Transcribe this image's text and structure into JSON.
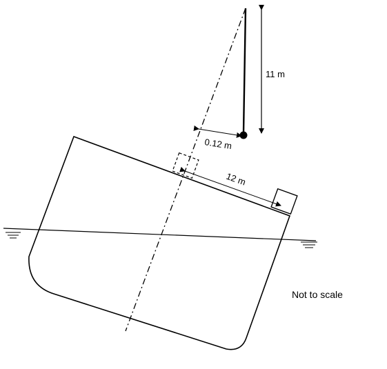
{
  "labels": {
    "pendulum_length": "11 m",
    "deflection": "0.12 m",
    "weight_shift": "12 m",
    "scale_note": "Not to scale"
  },
  "colors": {
    "ink": "#000000",
    "background": "#ffffff"
  }
}
